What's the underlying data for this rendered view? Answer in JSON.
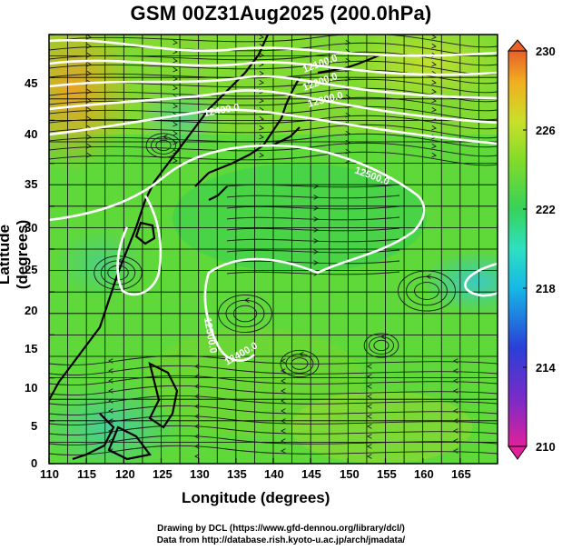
{
  "title": "GSM 00Z31Aug2025 (200.0hPa)",
  "axes": {
    "xlabel": "Longitude (degrees)",
    "ylabel": "Latitude  (degrees)",
    "xticks": [
      "110",
      "115",
      "120",
      "125",
      "130",
      "135",
      "140",
      "145",
      "150",
      "155",
      "160",
      "165"
    ],
    "yticks": [
      "0",
      "5",
      "10",
      "15",
      "20",
      "25",
      "30",
      "35",
      "40",
      "45"
    ],
    "xlim": [
      110,
      170
    ],
    "ylim": [
      0,
      50
    ]
  },
  "colorbar": {
    "ticks": [
      "230",
      "226",
      "222",
      "218",
      "214",
      "210"
    ],
    "range": [
      210,
      230
    ],
    "colors": [
      "#e0209a",
      "#7a2bc8",
      "#2a3fd8",
      "#16b8e6",
      "#2ee0c0",
      "#36d25a",
      "#7fdb2a",
      "#c8e02a",
      "#f0b020",
      "#e8602a"
    ]
  },
  "contours": {
    "labels": [
      "12100.0",
      "12200.0",
      "12300.0",
      "12400.0",
      "12500.0",
      "12500.0",
      "12400.0"
    ]
  },
  "credits": {
    "line1": "Drawing by DCL (https://www.gfd-dennou.org/library/dcl/)",
    "line2": "Data from http://database.rish.kyoto-u.ac.jp/arch/jmadata/"
  }
}
